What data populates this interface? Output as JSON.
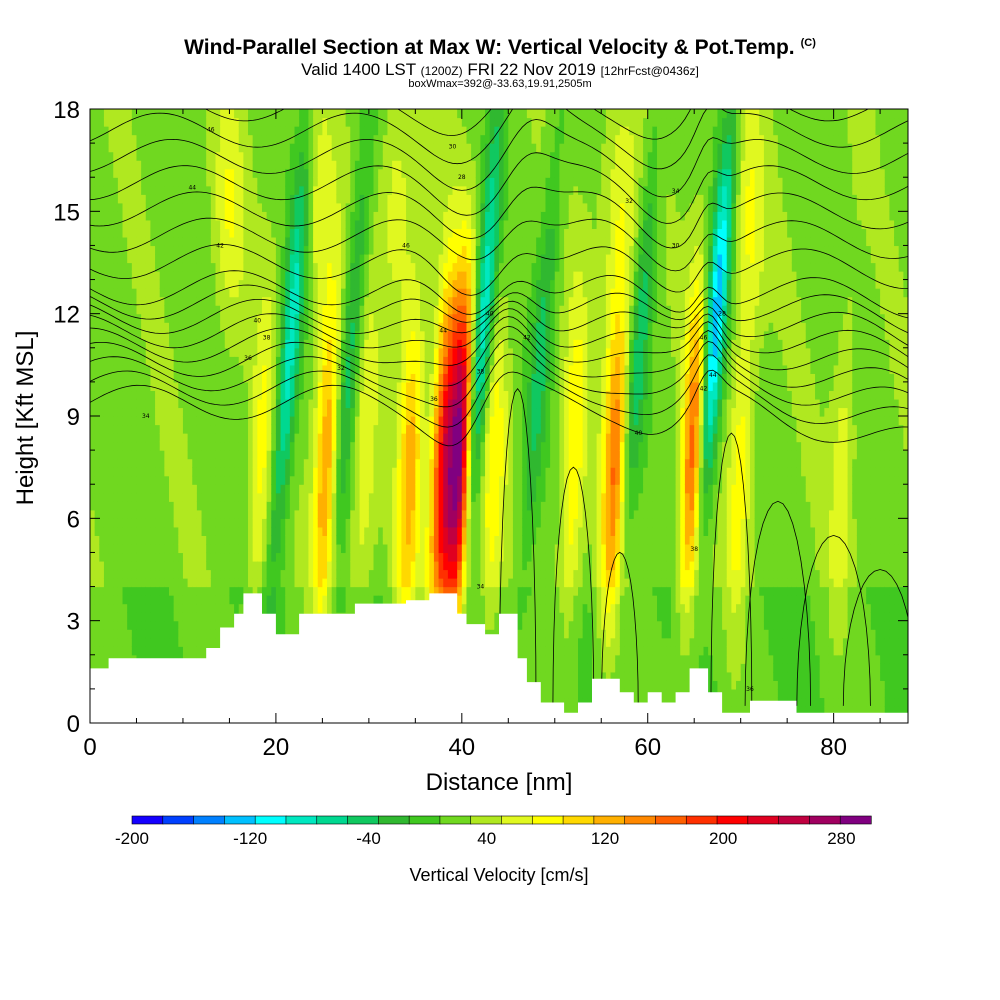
{
  "header": {
    "title": "Wind-Parallel Section at Max W: Vertical Velocity & Pot.Temp.",
    "copyright_mark": "(C)",
    "valid_main": "Valid 1400 LST",
    "valid_utc": "(1200Z)",
    "valid_date": "FRI 22 Nov 2019",
    "forecast": "[12hrFcst@0436z]",
    "box_info": "boxWmax=392@-33.63,19.91,2505m"
  },
  "chart_data": {
    "type": "heatmap",
    "xlabel": "Distance [nm]",
    "ylabel": "Height [Kft MSL]",
    "xlim": [
      0,
      88
    ],
    "ylim": [
      0,
      18
    ],
    "xticks": [
      "0",
      "20",
      "40",
      "60",
      "80"
    ],
    "yticks": [
      "0",
      "3",
      "6",
      "9",
      "12",
      "15",
      "18"
    ],
    "colorbar": {
      "label": "Vertical Velocity [cm/s]",
      "ticks": [
        "-200",
        "-120",
        "-40",
        "40",
        "120",
        "200",
        "280"
      ],
      "range": [
        -200,
        300
      ],
      "colors": [
        "#1400ff",
        "#0040ff",
        "#0080ff",
        "#00c0ff",
        "#00ffff",
        "#00e8c0",
        "#00d890",
        "#10c860",
        "#30b830",
        "#40c820",
        "#70d820",
        "#b0e820",
        "#e0f820",
        "#ffff00",
        "#ffd800",
        "#ffb000",
        "#ff8800",
        "#ff6000",
        "#ff3000",
        "#ff0000",
        "#e00020",
        "#c00040",
        "#a00060",
        "#800080"
      ]
    },
    "updraft_columns": [
      {
        "x": 18.5,
        "w_peak": 55
      },
      {
        "x": 25.5,
        "w_peak": 120
      },
      {
        "x": 29.5,
        "w_peak": 45
      },
      {
        "x": 34.5,
        "w_peak": 100
      },
      {
        "x": 38.0,
        "w_peak": 180
      },
      {
        "x": 39.8,
        "w_peak": 270
      },
      {
        "x": 43.5,
        "w_peak": 60
      },
      {
        "x": 52.0,
        "w_peak": 70
      },
      {
        "x": 56.5,
        "w_peak": 130
      },
      {
        "x": 65.0,
        "w_peak": 160
      },
      {
        "x": 70.0,
        "w_peak": 60
      },
      {
        "x": 81.0,
        "w_peak": 40
      }
    ],
    "downdraft_columns": [
      {
        "x": 21.0,
        "w_peak": -110
      },
      {
        "x": 27.5,
        "w_peak": -70
      },
      {
        "x": 41.5,
        "w_peak": -130
      },
      {
        "x": 48.0,
        "w_peak": -60
      },
      {
        "x": 58.5,
        "w_peak": -70
      },
      {
        "x": 66.5,
        "w_peak": -160
      }
    ],
    "terrain": [
      [
        0,
        1.6
      ],
      [
        2,
        1.6
      ],
      [
        2,
        1.9
      ],
      [
        12.5,
        1.9
      ],
      [
        12.5,
        2.2
      ],
      [
        14,
        2.2
      ],
      [
        14,
        2.8
      ],
      [
        15.5,
        2.8
      ],
      [
        15.5,
        3.2
      ],
      [
        16.5,
        3.2
      ],
      [
        16.5,
        3.8
      ],
      [
        18.5,
        3.8
      ],
      [
        18.5,
        3.2
      ],
      [
        20,
        3.2
      ],
      [
        20,
        2.6
      ],
      [
        22.5,
        2.6
      ],
      [
        22.5,
        3.2
      ],
      [
        28.5,
        3.2
      ],
      [
        28.5,
        3.5
      ],
      [
        34,
        3.5
      ],
      [
        34,
        3.6
      ],
      [
        36.5,
        3.6
      ],
      [
        36.5,
        3.8
      ],
      [
        39.5,
        3.8
      ],
      [
        39.5,
        3.2
      ],
      [
        40.5,
        3.2
      ],
      [
        40.5,
        2.9
      ],
      [
        42.5,
        2.9
      ],
      [
        42.5,
        2.6
      ],
      [
        44,
        2.6
      ],
      [
        44,
        3.2
      ],
      [
        46,
        3.2
      ],
      [
        46,
        1.9
      ],
      [
        47,
        1.9
      ],
      [
        47,
        1.2
      ],
      [
        48.5,
        1.2
      ],
      [
        48.5,
        0.6
      ],
      [
        51,
        0.6
      ],
      [
        51,
        0.3
      ],
      [
        52.5,
        0.3
      ],
      [
        52.5,
        0.6
      ],
      [
        54,
        0.6
      ],
      [
        54,
        1.3
      ],
      [
        57,
        1.3
      ],
      [
        57,
        0.9
      ],
      [
        58.5,
        0.9
      ],
      [
        58.5,
        0.6
      ],
      [
        60,
        0.6
      ],
      [
        60,
        0.9
      ],
      [
        61.5,
        0.9
      ],
      [
        61.5,
        0.6
      ],
      [
        63,
        0.6
      ],
      [
        63,
        0.9
      ],
      [
        64.5,
        0.9
      ],
      [
        64.5,
        1.6
      ],
      [
        66.5,
        1.6
      ],
      [
        66.5,
        0.9
      ],
      [
        68,
        0.9
      ],
      [
        68,
        0.3
      ],
      [
        71,
        0.3
      ],
      [
        71,
        0.65
      ],
      [
        76,
        0.65
      ],
      [
        76,
        0.3
      ],
      [
        88,
        0.3
      ]
    ],
    "isentrope_labels": [
      "46",
      "44",
      "42",
      "40",
      "38",
      "36",
      "34",
      "32",
      "30",
      "28"
    ]
  }
}
